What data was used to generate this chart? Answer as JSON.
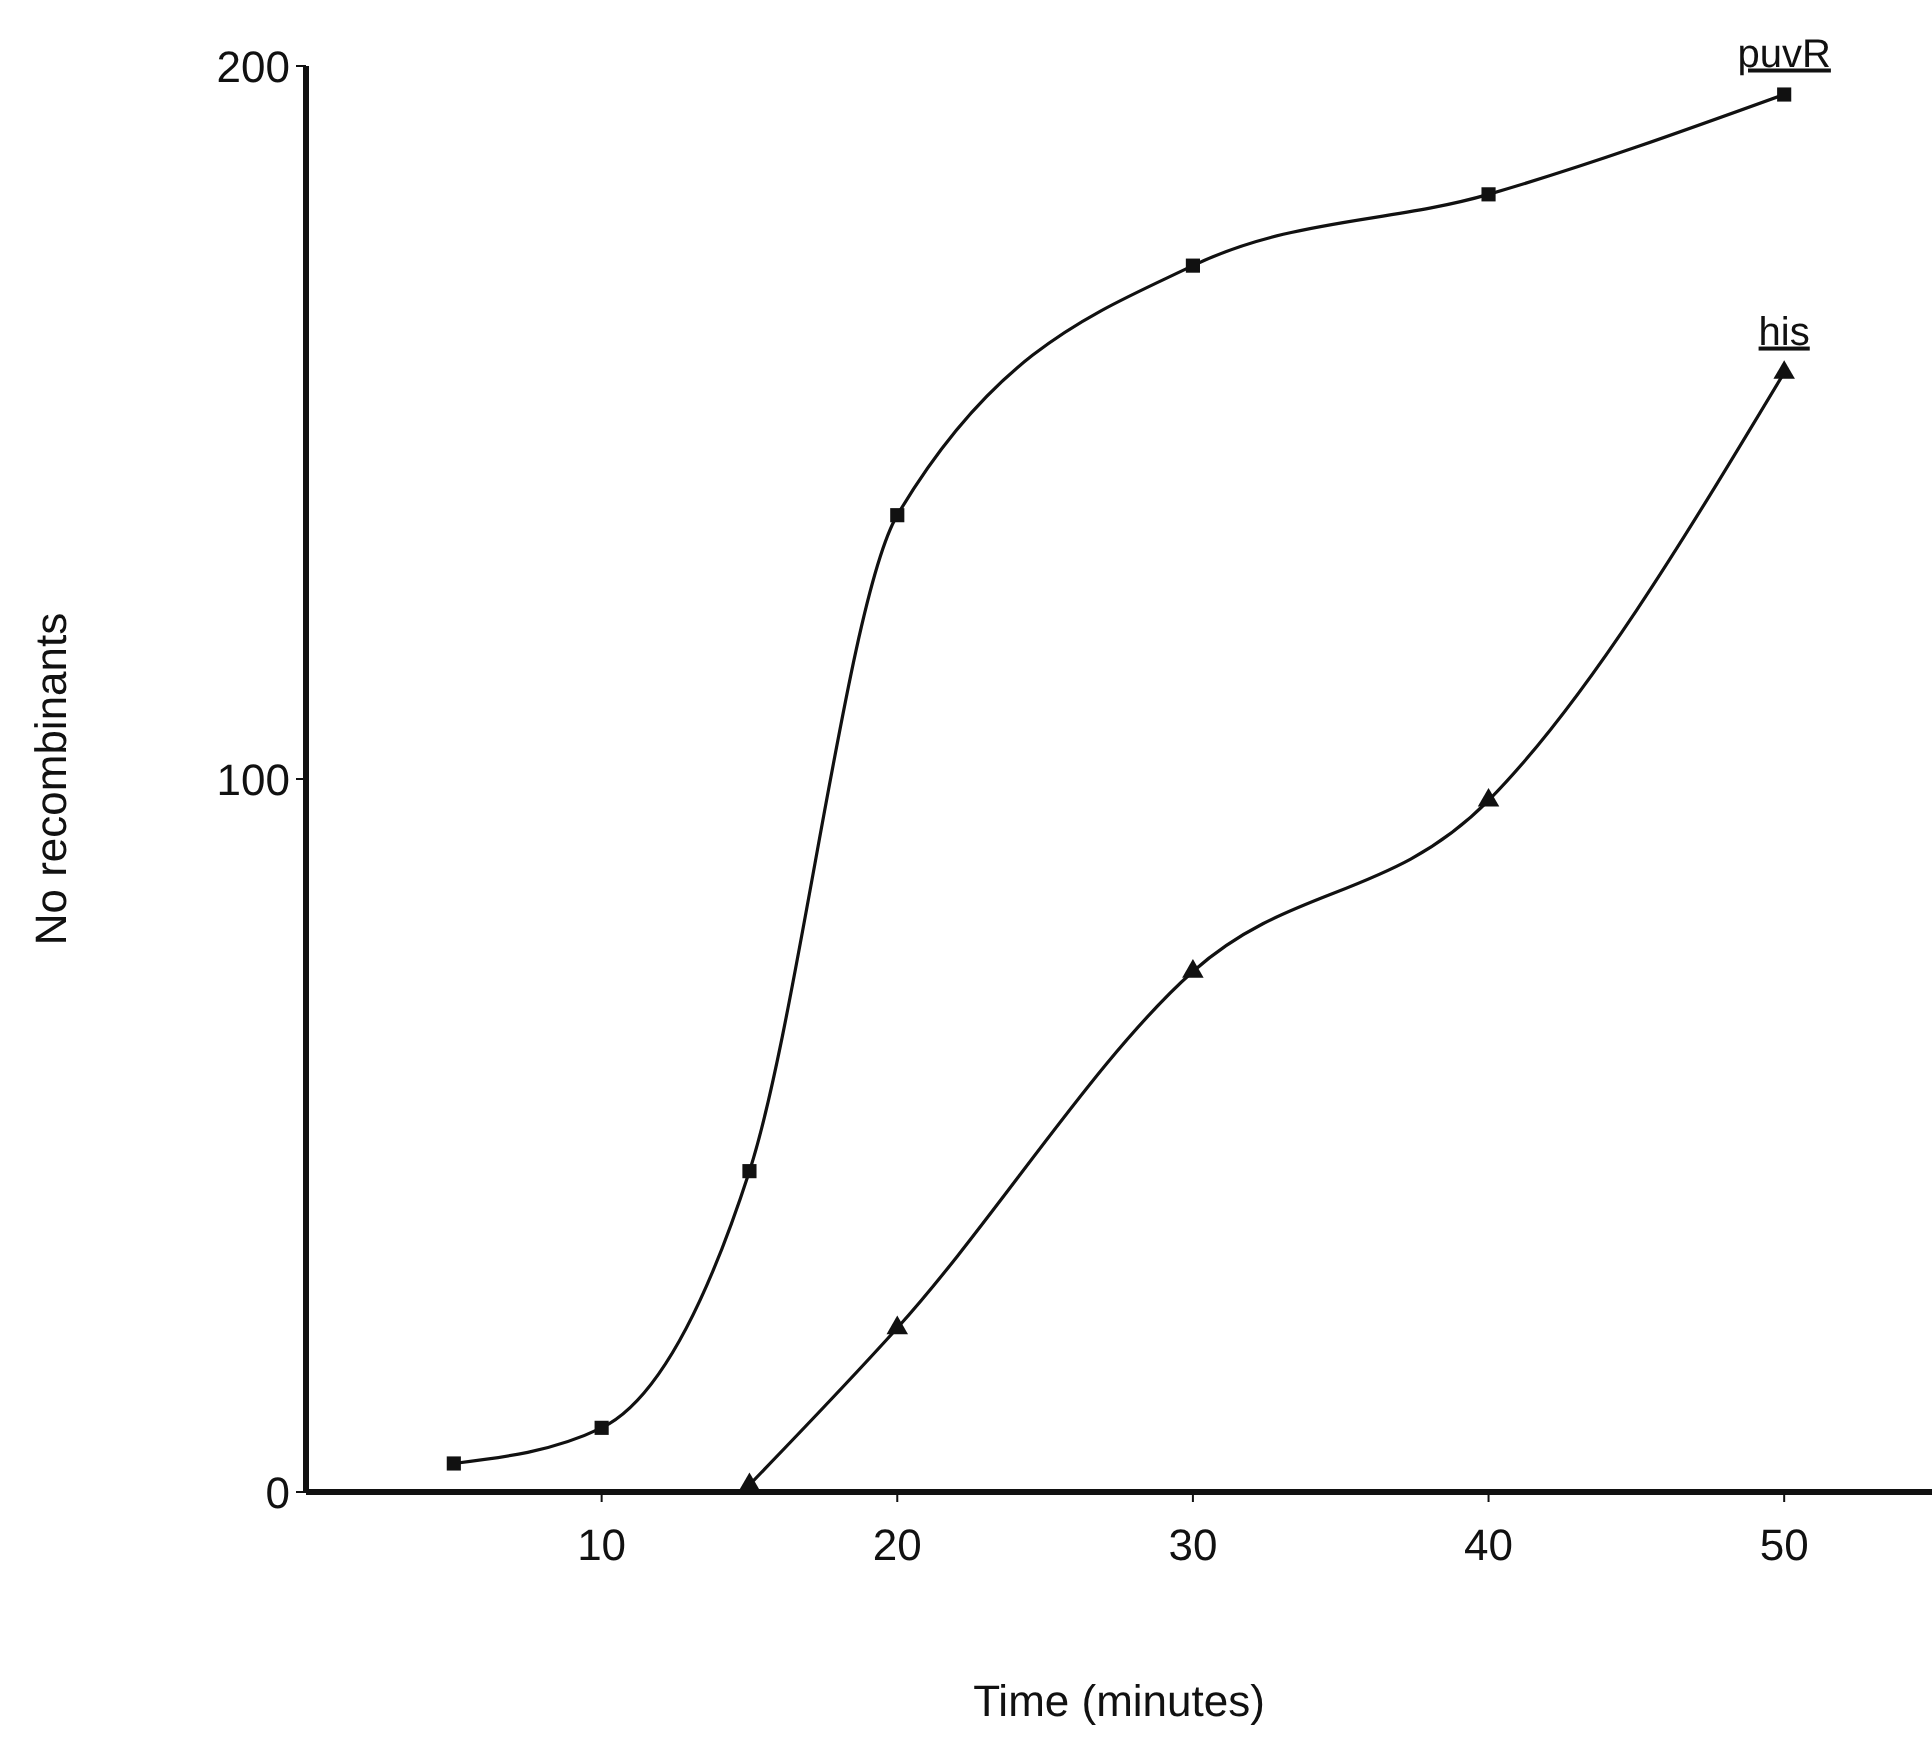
{
  "chart_data": {
    "type": "line",
    "xlabel": "Time (minutes)",
    "ylabel": "No recombinants",
    "xlim": [
      0,
      55
    ],
    "xticks": [
      10,
      20,
      30,
      40,
      50
    ],
    "ylim": [
      0,
      200
    ],
    "yticks": [
      0,
      100,
      200
    ],
    "grid": false,
    "legend": false,
    "line_style": "solid",
    "series": [
      {
        "name": "puvR",
        "color": "#111111",
        "marker": "square",
        "x": [
          5,
          10,
          15,
          20,
          30,
          40,
          50
        ],
        "values": [
          4,
          9,
          45,
          137,
          172,
          182,
          196
        ]
      },
      {
        "name": "his",
        "color": "#111111",
        "marker": "triangle",
        "x": [
          15,
          20,
          30,
          40,
          50
        ],
        "values": [
          1,
          23,
          73,
          97,
          157
        ]
      }
    ]
  }
}
